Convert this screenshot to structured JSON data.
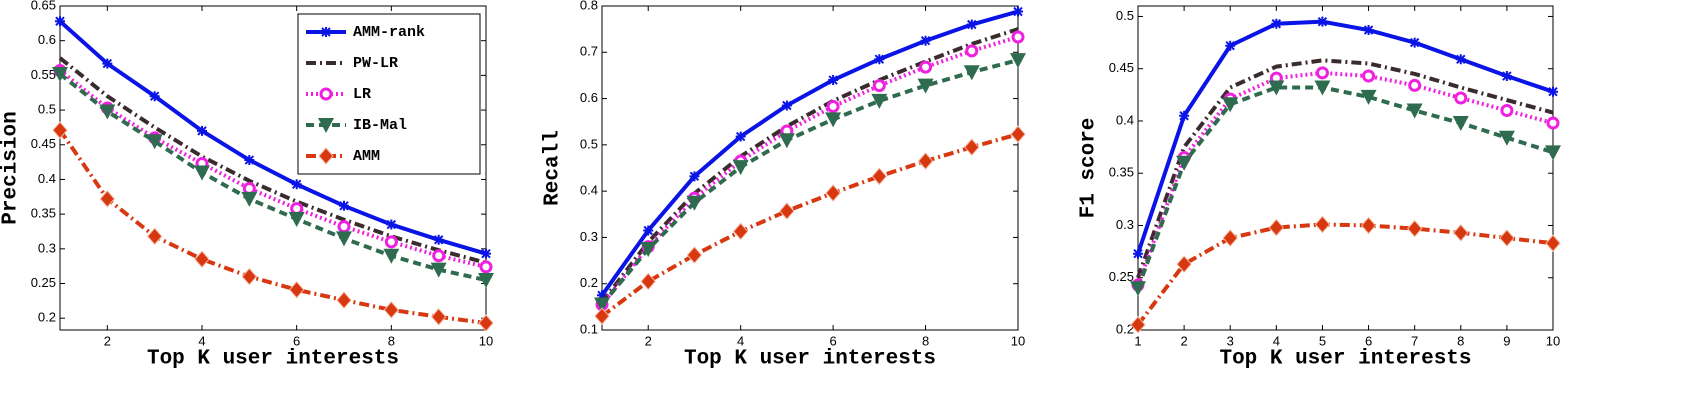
{
  "chart_data": [
    {
      "type": "line",
      "x_label": "Top K user interests",
      "y_label": "Precision",
      "x": [
        1,
        2,
        3,
        4,
        5,
        6,
        7,
        8,
        9,
        10
      ],
      "xlim": [
        1,
        10
      ],
      "xticks": [
        2,
        4,
        6,
        8,
        10
      ],
      "ylim": [
        0.183,
        0.65
      ],
      "yticks": [
        0.2,
        0.25,
        0.3,
        0.35,
        0.4,
        0.45,
        0.5,
        0.55,
        0.6,
        0.65
      ],
      "legend": "upper right",
      "series": [
        {
          "name": "AMM-rank",
          "color": "#0a14e6",
          "marker": "star",
          "dash": "solid",
          "values": [
            0.628,
            0.567,
            0.52,
            0.47,
            0.428,
            0.393,
            0.362,
            0.335,
            0.313,
            0.293
          ]
        },
        {
          "name": "PW-LR",
          "color": "#3a2c2c",
          "marker": "none",
          "dash": "dashdot",
          "values": [
            0.575,
            0.52,
            0.475,
            0.433,
            0.398,
            0.368,
            0.342,
            0.318,
            0.298,
            0.28
          ]
        },
        {
          "name": "LR",
          "color": "#f020e0",
          "marker": "circle",
          "dash": "dotted",
          "values": [
            0.557,
            0.503,
            0.46,
            0.423,
            0.387,
            0.358,
            0.332,
            0.31,
            0.29,
            0.274
          ]
        },
        {
          "name": "IB-Mal",
          "color": "#2f6b4f",
          "marker": "triangle",
          "dash": "dashed",
          "values": [
            0.552,
            0.498,
            0.455,
            0.41,
            0.372,
            0.343,
            0.315,
            0.29,
            0.27,
            0.255
          ]
        },
        {
          "name": "AMM",
          "color": "#d83810",
          "marker": "diamond",
          "dash": "dashdot",
          "values": [
            0.471,
            0.372,
            0.318,
            0.285,
            0.26,
            0.241,
            0.226,
            0.212,
            0.202,
            0.193
          ]
        }
      ]
    },
    {
      "type": "line",
      "x_label": "Top K user interests",
      "y_label": "Recall",
      "x": [
        1,
        2,
        3,
        4,
        5,
        6,
        7,
        8,
        9,
        10
      ],
      "xlim": [
        1,
        10
      ],
      "xticks": [
        2,
        4,
        6,
        8,
        10
      ],
      "ylim": [
        0.1,
        0.8
      ],
      "yticks": [
        0.1,
        0.2,
        0.3,
        0.4,
        0.5,
        0.6,
        0.7,
        0.8
      ],
      "series": [
        {
          "color": "#0a14e6",
          "marker": "star",
          "dash": "solid",
          "values": [
            0.175,
            0.315,
            0.432,
            0.518,
            0.585,
            0.64,
            0.685,
            0.725,
            0.76,
            0.788
          ]
        },
        {
          "color": "#3a2c2c",
          "marker": "none",
          "dash": "dashdot",
          "values": [
            0.16,
            0.29,
            0.395,
            0.475,
            0.54,
            0.595,
            0.64,
            0.68,
            0.718,
            0.75
          ]
        },
        {
          "color": "#f020e0",
          "marker": "circle",
          "dash": "dotted",
          "values": [
            0.155,
            0.28,
            0.385,
            0.465,
            0.53,
            0.583,
            0.628,
            0.668,
            0.703,
            0.733
          ]
        },
        {
          "color": "#2f6b4f",
          "marker": "triangle",
          "dash": "dashed",
          "values": [
            0.155,
            0.275,
            0.375,
            0.452,
            0.51,
            0.555,
            0.595,
            0.628,
            0.657,
            0.683
          ]
        },
        {
          "color": "#d83810",
          "marker": "diamond",
          "dash": "dashdot",
          "values": [
            0.13,
            0.205,
            0.262,
            0.313,
            0.357,
            0.396,
            0.432,
            0.465,
            0.495,
            0.523
          ]
        }
      ]
    },
    {
      "type": "line",
      "x_label": "Top K user interests",
      "y_label": "F1 score",
      "x": [
        1,
        2,
        3,
        4,
        5,
        6,
        7,
        8,
        9,
        10
      ],
      "xlim": [
        1,
        10
      ],
      "xticks": [
        1,
        2,
        3,
        4,
        5,
        6,
        7,
        8,
        9,
        10
      ],
      "ylim": [
        0.2,
        0.51
      ],
      "yticks": [
        0.2,
        0.25,
        0.3,
        0.35,
        0.4,
        0.45,
        0.5
      ],
      "series": [
        {
          "color": "#0a14e6",
          "marker": "star",
          "dash": "solid",
          "values": [
            0.273,
            0.405,
            0.472,
            0.493,
            0.495,
            0.487,
            0.475,
            0.459,
            0.443,
            0.428
          ]
        },
        {
          "color": "#3a2c2c",
          "marker": "none",
          "dash": "dashdot",
          "values": [
            0.25,
            0.375,
            0.432,
            0.452,
            0.458,
            0.455,
            0.445,
            0.432,
            0.42,
            0.408
          ]
        },
        {
          "color": "#f020e0",
          "marker": "circle",
          "dash": "dotted",
          "values": [
            0.243,
            0.365,
            0.421,
            0.441,
            0.446,
            0.443,
            0.434,
            0.422,
            0.41,
            0.398
          ]
        },
        {
          "color": "#2f6b4f",
          "marker": "triangle",
          "dash": "dashed",
          "values": [
            0.24,
            0.36,
            0.416,
            0.432,
            0.432,
            0.423,
            0.41,
            0.398,
            0.384,
            0.37
          ]
        },
        {
          "color": "#d83810",
          "marker": "diamond",
          "dash": "dashdot",
          "values": [
            0.205,
            0.263,
            0.288,
            0.298,
            0.301,
            0.3,
            0.297,
            0.293,
            0.288,
            0.283
          ]
        }
      ]
    }
  ]
}
